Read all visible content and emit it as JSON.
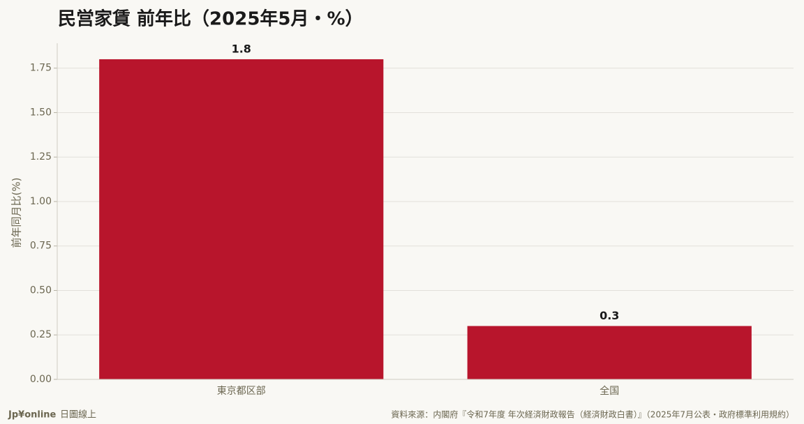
{
  "chart_data": {
    "type": "bar",
    "title": "民営家賃 前年比（2025年5月・%）",
    "y_label": "前年同月比(%)",
    "categories": [
      "東京都区部",
      "全国"
    ],
    "values": [
      1.8,
      0.3
    ],
    "color": "#b8152c",
    "ylim": [
      0,
      1.89
    ],
    "yticks": [
      {
        "value": 0,
        "label": "0.00"
      },
      {
        "value": 0.25,
        "label": "0.25"
      },
      {
        "value": 0.5,
        "label": "0.50"
      },
      {
        "value": 0.75,
        "label": "0.75"
      },
      {
        "value": 1,
        "label": "1.00"
      },
      {
        "value": 1.25,
        "label": "1.25"
      },
      {
        "value": 1.5,
        "label": "1.50"
      },
      {
        "value": 1.75,
        "label": "1.75"
      }
    ],
    "grid": true
  },
  "footer": {
    "brand": "Jp¥online",
    "brand_sub": "日圖線上",
    "source": "資料來源：内閣府『令和7年度 年次経済財政報告（経済財政白書）』（2025年7月公表・政府標準利用規約）"
  }
}
